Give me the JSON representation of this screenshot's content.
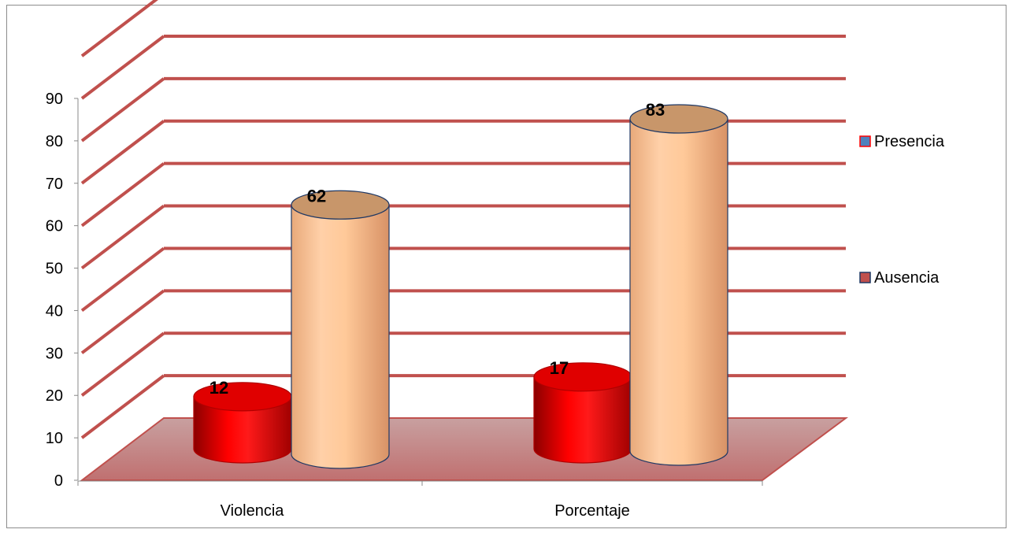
{
  "chart_data": {
    "type": "bar",
    "style": "3d-cylinder",
    "categories": [
      "Violencia",
      "Porcentaje"
    ],
    "series": [
      {
        "name": "Presencia",
        "values": [
          12,
          17
        ],
        "color": "#ff0000",
        "legend_swatch": "#4f81bd",
        "legend_border": "#ff0000"
      },
      {
        "name": "Ausencia",
        "values": [
          62,
          83
        ],
        "color": "#fac090",
        "legend_swatch": "#c0504d",
        "legend_border": "#1f3864"
      }
    ],
    "ylim": [
      0,
      90
    ],
    "yticks": [
      0,
      10,
      20,
      30,
      40,
      50,
      60,
      70,
      80,
      90
    ],
    "grid": true,
    "gridline_color": "#c0504d",
    "floor_color": "#c0504d",
    "legend_position": "right",
    "title": "",
    "xlabel": "",
    "ylabel": ""
  }
}
